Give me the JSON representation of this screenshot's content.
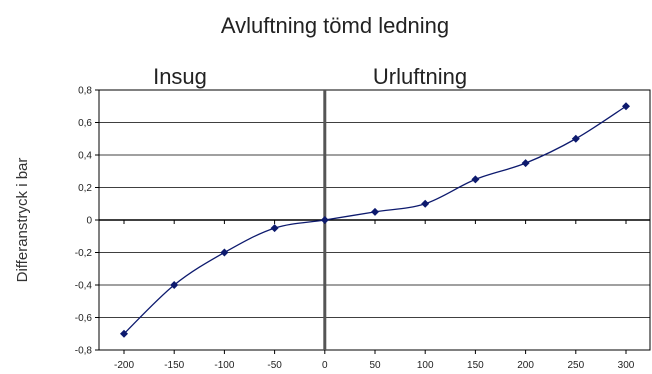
{
  "chart_data": {
    "type": "line",
    "title": "Avluftning tömd ledning",
    "xlabel": "",
    "ylabel": "Differanstryck i bar",
    "region_labels": [
      "Insug",
      "Urluftning"
    ],
    "x": [
      -200,
      -150,
      -100,
      -50,
      0,
      50,
      100,
      150,
      200,
      250,
      300
    ],
    "x_tick_labels": [
      "-200",
      "-150",
      "-100",
      "-50",
      "0",
      "50",
      "100",
      "150",
      "200",
      "250",
      "300"
    ],
    "y_tick_labels": [
      "0,8",
      "0,6",
      "0,4",
      "0,2",
      "0",
      "-0,2",
      "-0,4",
      "-0,6",
      "-0,8"
    ],
    "y_ticks": [
      0.8,
      0.6,
      0.4,
      0.2,
      0,
      -0.2,
      -0.4,
      -0.6,
      -0.8
    ],
    "series": [
      {
        "values": [
          -0.7,
          -0.4,
          -0.2,
          -0.05,
          0,
          0.05,
          0.1,
          0.25,
          0.35,
          0.5,
          0.7
        ],
        "color": "#0d1a6e"
      }
    ],
    "xlim": [
      -200,
      300
    ],
    "ylim": [
      -0.8,
      0.8
    ],
    "grid": true,
    "grid_axis": "y"
  }
}
